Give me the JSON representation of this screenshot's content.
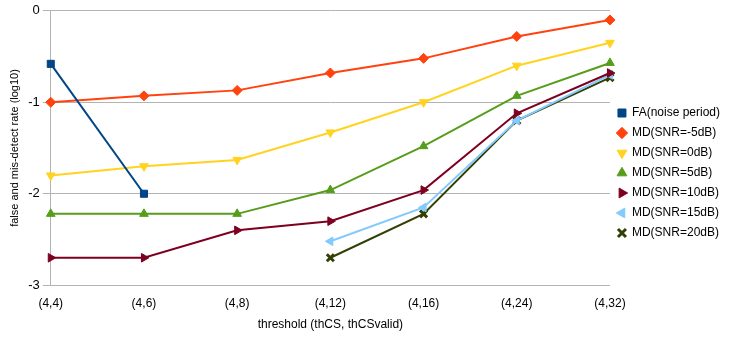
{
  "chart_data": {
    "type": "line",
    "x_label": "threshold (thCS, thCSvalid)",
    "y_label": "false and mis-detect rate (log10)",
    "categories": [
      "(4,4)",
      "(4,6)",
      "(4,8)",
      "(4,12)",
      "(4,16)",
      "(4,24)",
      "(4,32)"
    ],
    "ylim": [
      -3,
      0
    ],
    "yticks": [
      -3,
      -2,
      -1,
      0
    ],
    "grid": "y",
    "legend": "right",
    "series": [
      {
        "name": "FA(noise period)",
        "color": "#004586",
        "marker": "square",
        "values": [
          -0.58,
          -2.0,
          null,
          null,
          null,
          null,
          null
        ]
      },
      {
        "name": "MD(SNR=-5dB)",
        "color": "#ff420e",
        "marker": "diamond",
        "values": [
          -1.0,
          -0.93,
          -0.87,
          -0.68,
          -0.52,
          -0.28,
          -0.1
        ]
      },
      {
        "name": "MD(SNR=0dB)",
        "color": "#ffd320",
        "marker": "triangle-down",
        "values": [
          -1.8,
          -1.7,
          -1.63,
          -1.33,
          -1.0,
          -0.6,
          -0.35
        ]
      },
      {
        "name": "MD(SNR=5dB)",
        "color": "#579d1c",
        "marker": "triangle-up",
        "values": [
          -2.22,
          -2.22,
          -2.22,
          -1.96,
          -1.48,
          -0.93,
          -0.57
        ]
      },
      {
        "name": "MD(SNR=10dB)",
        "color": "#7e0021",
        "marker": "triangle-right",
        "values": [
          -2.7,
          -2.7,
          -2.4,
          -2.3,
          -1.96,
          -1.12,
          -0.68
        ]
      },
      {
        "name": "MD(SNR=15dB)",
        "color": "#83caff",
        "marker": "triangle-left",
        "values": [
          null,
          null,
          null,
          -2.52,
          -2.15,
          -1.2,
          -0.7
        ]
      },
      {
        "name": "MD(SNR=20dB)",
        "color": "#314004",
        "marker": "bowtie",
        "values": [
          null,
          null,
          null,
          -2.7,
          -2.22,
          -1.2,
          -0.73
        ]
      }
    ]
  }
}
